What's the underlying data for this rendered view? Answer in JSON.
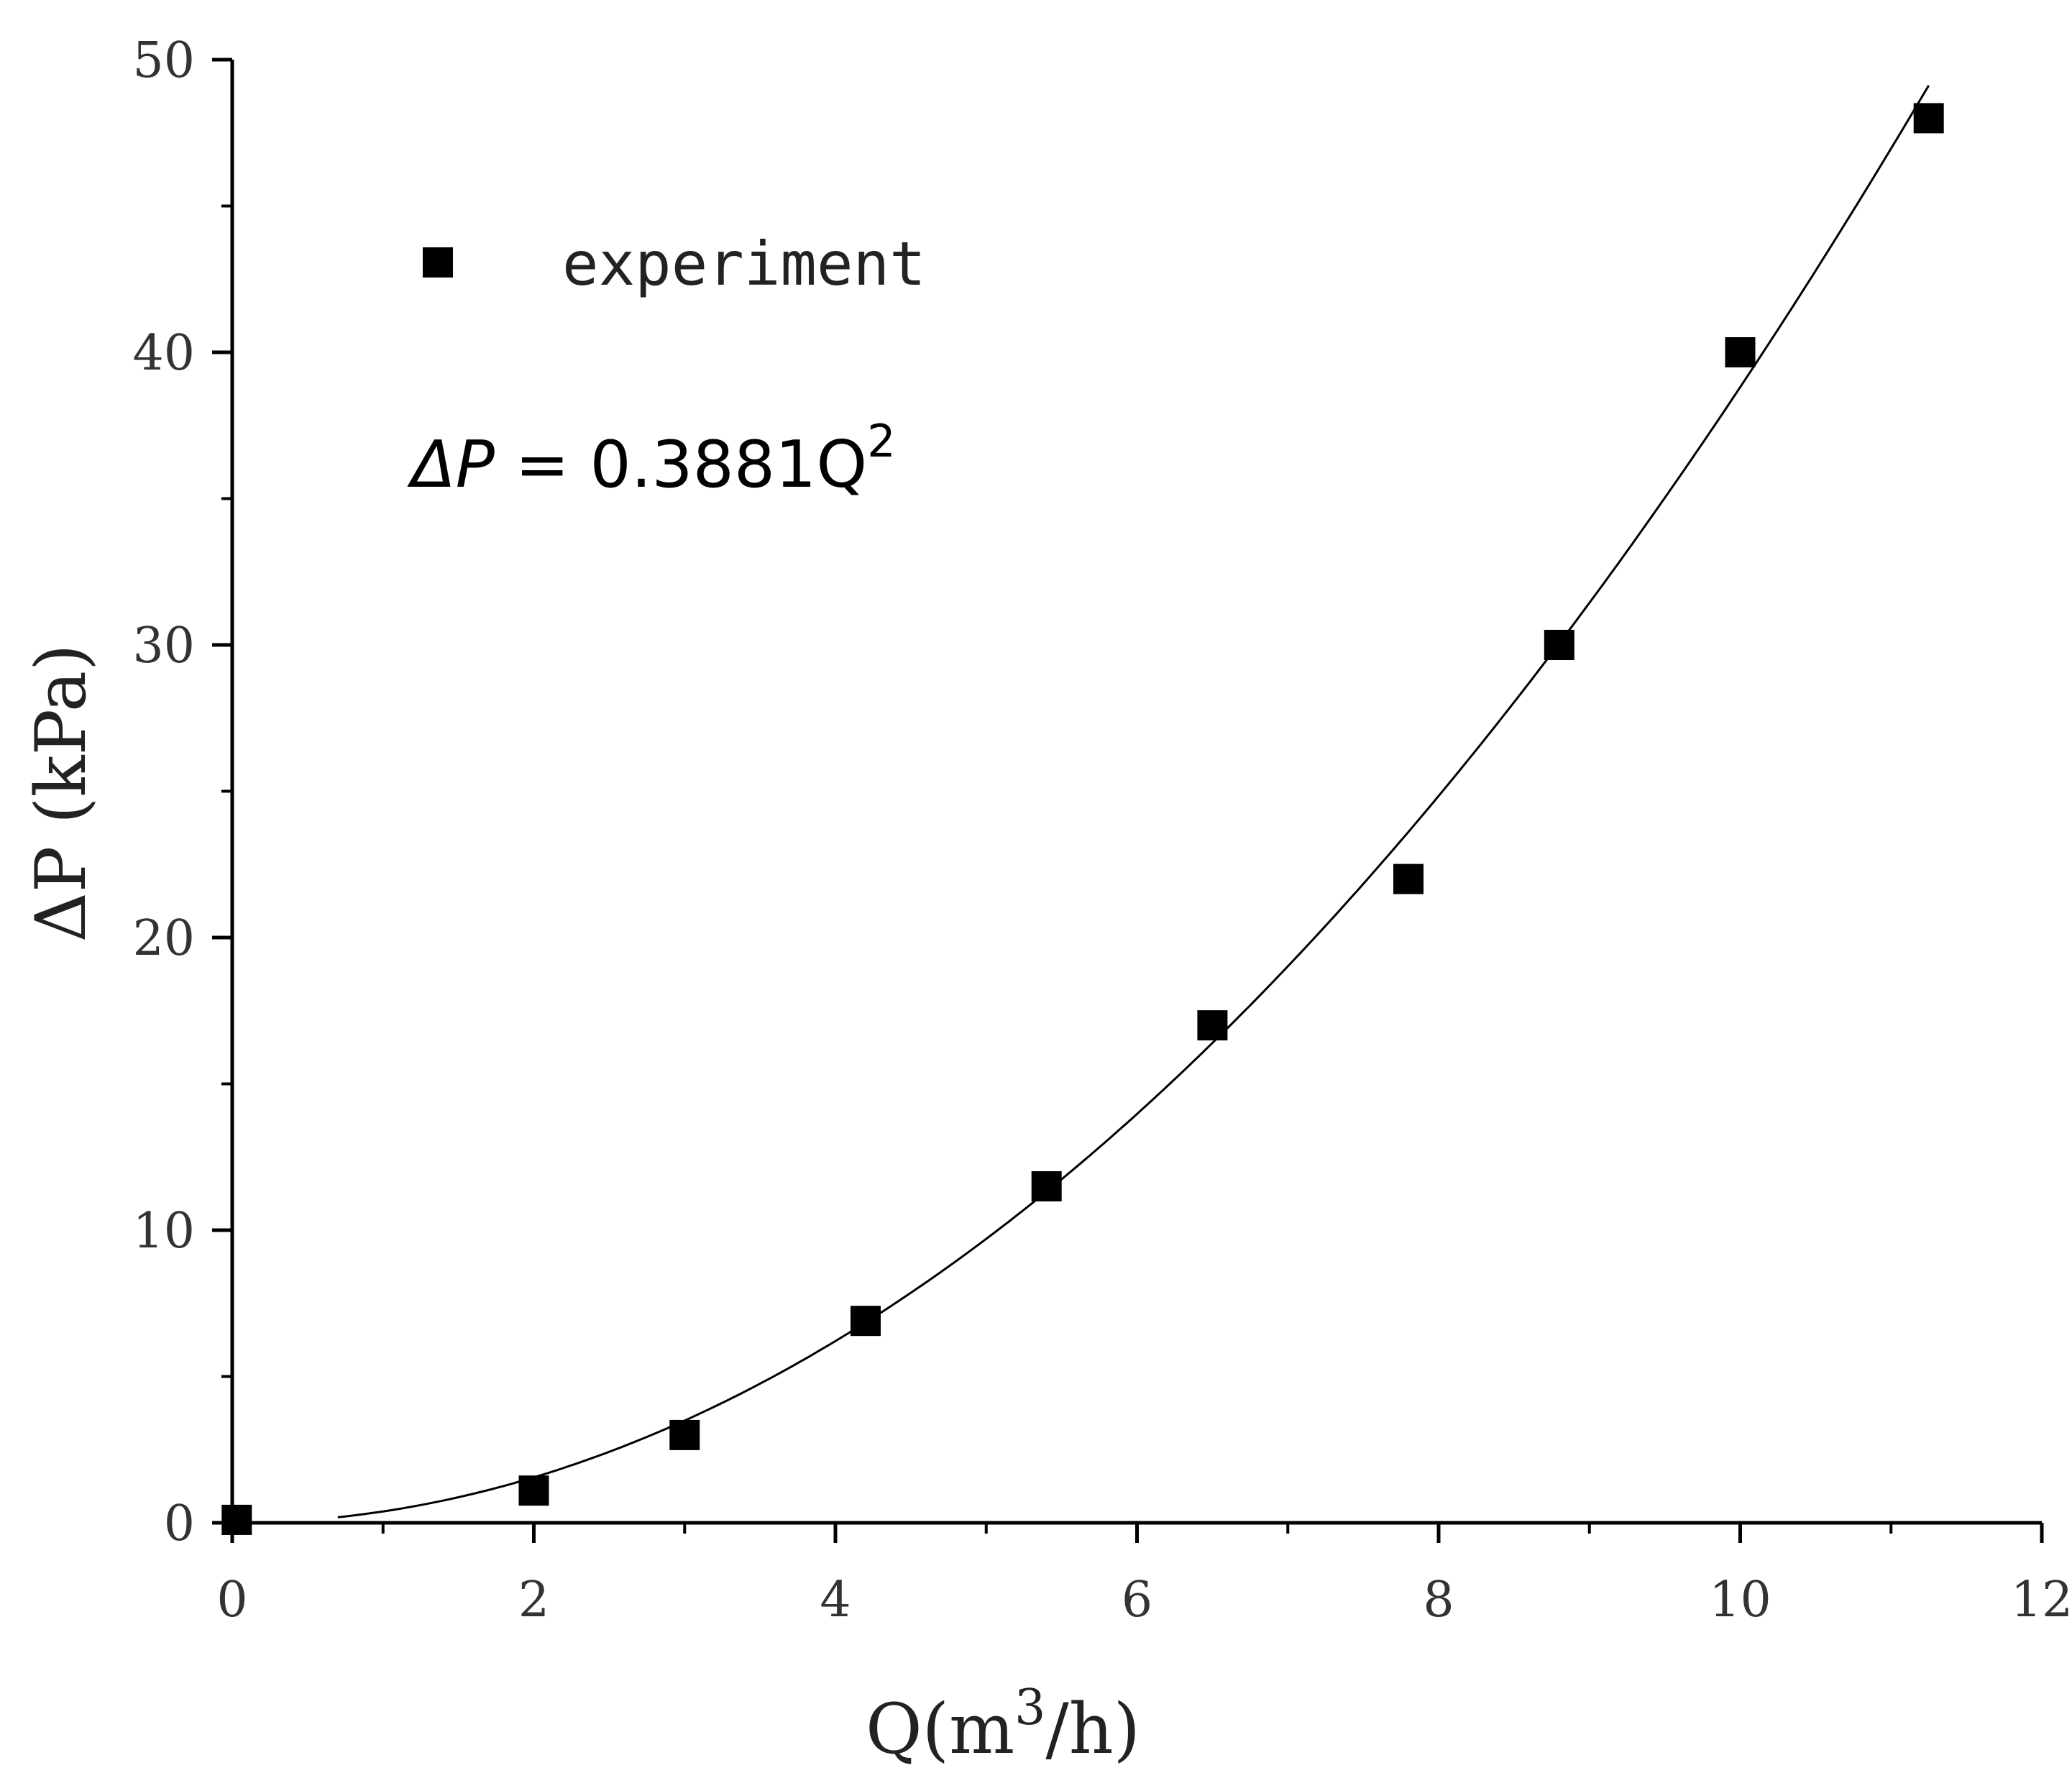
{
  "chart_data": {
    "type": "scatter",
    "title": "",
    "xlabel": "Q(m3/h)",
    "ylabel": "ΔP (kPa)",
    "xlabel_parts": {
      "base": "Q(m",
      "sup": "3",
      "tail": "/h)"
    },
    "xlim": [
      0,
      12
    ],
    "ylim": [
      0,
      50
    ],
    "x_ticks": [
      "0",
      "2",
      "4",
      "6",
      "8",
      "10",
      "12"
    ],
    "y_ticks": [
      "0",
      "10",
      "20",
      "30",
      "40",
      "50"
    ],
    "series": [
      {
        "name": "experiment",
        "marker": "square",
        "color": "#000000",
        "x": [
          0.03,
          2.0,
          3.0,
          4.2,
          5.4,
          6.5,
          7.8,
          8.8,
          10.0,
          11.25
        ],
        "y": [
          0.1,
          1.1,
          3.0,
          6.9,
          11.5,
          17.0,
          22.0,
          30.0,
          40.0,
          48.0
        ]
      }
    ],
    "fit": {
      "equation_parts": {
        "lhs": "ΔP",
        "rhs": " = 0.3881Q",
        "sup": "2"
      },
      "coefficient": 0.3881,
      "x_range": [
        0.7,
        11.25
      ],
      "color": "#000000"
    },
    "legend_position": "top-left",
    "grid": false
  }
}
